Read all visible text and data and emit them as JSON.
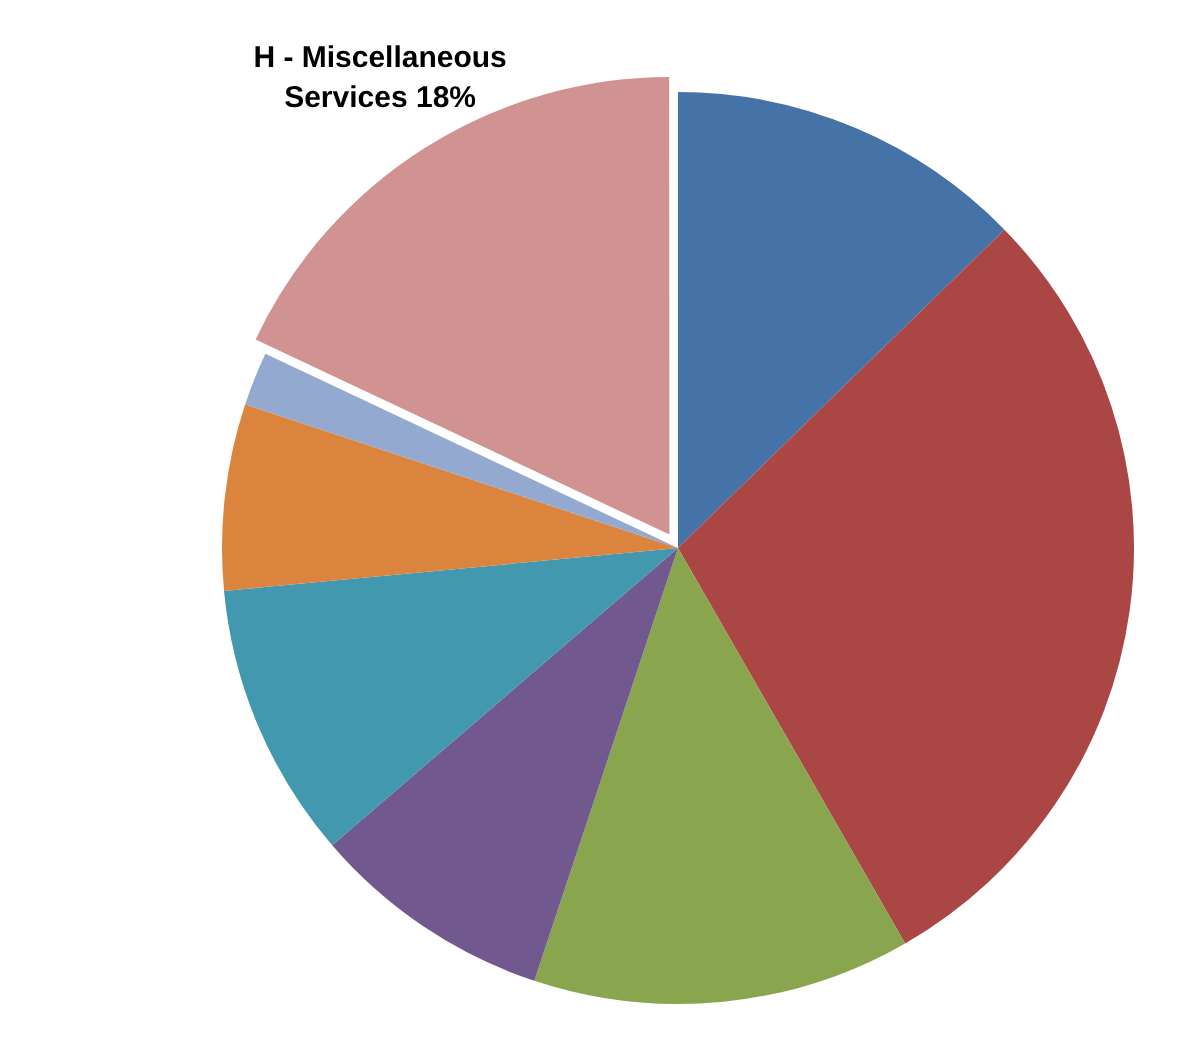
{
  "chart_data": {
    "type": "pie",
    "categories": [
      null,
      null,
      null,
      null,
      null,
      null,
      null,
      "H - Miscellaneous Services"
    ],
    "values": [
      12.7,
      29,
      13.4,
      8.6,
      9.8,
      6.6,
      1.9,
      18
    ],
    "colors": [
      "#4572a7",
      "#aa4643",
      "#89a54e",
      "#71588f",
      "#4198af",
      "#db843d",
      "#93a9cf",
      "#d19392"
    ],
    "value_labels": [
      null,
      null,
      null,
      null,
      null,
      null,
      null,
      "18%"
    ],
    "legend": false
  }
}
